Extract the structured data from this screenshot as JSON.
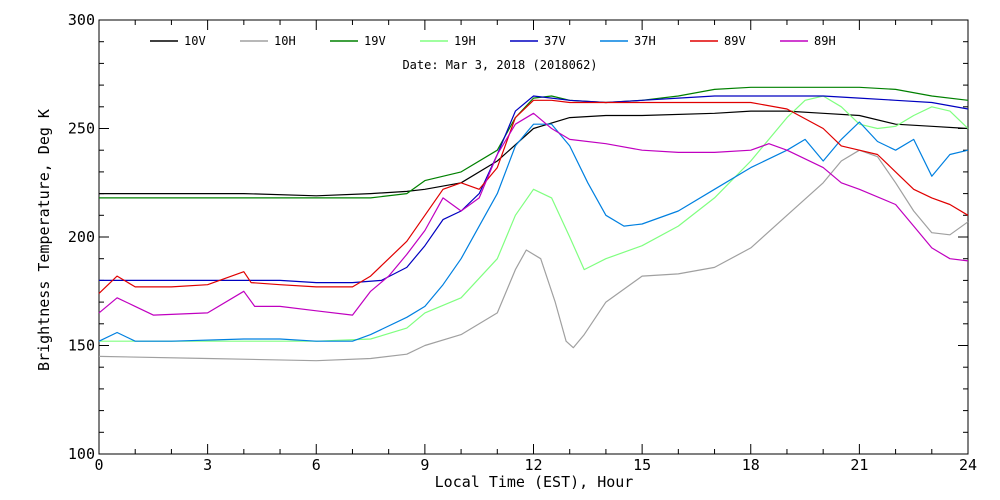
{
  "chart_data": {
    "type": "line",
    "title": "Date: Mar  3, 2018 (2018062)",
    "xlabel": "Local Time (EST), Hour",
    "ylabel": "Brightness Temperature, Deg K",
    "xlim": [
      0,
      24
    ],
    "ylim": [
      100,
      300
    ],
    "xticks": [
      0,
      3,
      6,
      9,
      12,
      15,
      18,
      21,
      24
    ],
    "yticks": [
      100,
      150,
      200,
      250,
      300
    ],
    "xtick_labels": [
      "0",
      "3",
      "6",
      "9",
      "12",
      "15",
      "18",
      "21",
      "24"
    ],
    "ytick_labels": [
      "100",
      "150",
      "200",
      "250",
      "300"
    ],
    "grid": false,
    "legend_position": "top",
    "series": [
      {
        "name": "10V",
        "color": "#000000",
        "points": [
          [
            0,
            220
          ],
          [
            2,
            220
          ],
          [
            4,
            220
          ],
          [
            6,
            219
          ],
          [
            7.5,
            220
          ],
          [
            8.5,
            221
          ],
          [
            9,
            222
          ],
          [
            10,
            225
          ],
          [
            11,
            235
          ],
          [
            12,
            250
          ],
          [
            13,
            255
          ],
          [
            14,
            256
          ],
          [
            15,
            256
          ],
          [
            17,
            257
          ],
          [
            18,
            258
          ],
          [
            19,
            258
          ],
          [
            20,
            257
          ],
          [
            21,
            256
          ],
          [
            22,
            252
          ],
          [
            23,
            251
          ],
          [
            24,
            250
          ]
        ]
      },
      {
        "name": "10H",
        "color": "#a0a0a0",
        "points": [
          [
            0,
            145
          ],
          [
            3,
            144
          ],
          [
            6,
            143
          ],
          [
            7.5,
            144
          ],
          [
            8.5,
            146
          ],
          [
            9,
            150
          ],
          [
            10,
            155
          ],
          [
            11,
            165
          ],
          [
            11.5,
            185
          ],
          [
            11.8,
            194
          ],
          [
            12.2,
            190
          ],
          [
            12.6,
            170
          ],
          [
            12.9,
            152
          ],
          [
            13.1,
            149
          ],
          [
            13.4,
            155
          ],
          [
            14,
            170
          ],
          [
            15,
            182
          ],
          [
            16,
            183
          ],
          [
            17,
            186
          ],
          [
            18,
            195
          ],
          [
            19,
            210
          ],
          [
            20,
            225
          ],
          [
            20.5,
            235
          ],
          [
            21,
            240
          ],
          [
            21.5,
            237
          ],
          [
            22,
            225
          ],
          [
            22.5,
            212
          ],
          [
            23,
            202
          ],
          [
            23.5,
            201
          ],
          [
            24,
            207
          ]
        ]
      },
      {
        "name": "19V",
        "color": "#008000",
        "points": [
          [
            0,
            218
          ],
          [
            3,
            218
          ],
          [
            6,
            218
          ],
          [
            7.5,
            218
          ],
          [
            8.5,
            220
          ],
          [
            9,
            226
          ],
          [
            10,
            230
          ],
          [
            11,
            240
          ],
          [
            11.5,
            255
          ],
          [
            12,
            264
          ],
          [
            12.5,
            265
          ],
          [
            13,
            263
          ],
          [
            14,
            262
          ],
          [
            15,
            263
          ],
          [
            16,
            265
          ],
          [
            17,
            268
          ],
          [
            18,
            269
          ],
          [
            19,
            269
          ],
          [
            20,
            269
          ],
          [
            21,
            269
          ],
          [
            22,
            268
          ],
          [
            23,
            265
          ],
          [
            24,
            263
          ]
        ]
      },
      {
        "name": "19H",
        "color": "#80ff80",
        "points": [
          [
            0,
            152
          ],
          [
            3,
            152
          ],
          [
            6,
            152
          ],
          [
            7.5,
            153
          ],
          [
            8.5,
            158
          ],
          [
            9,
            165
          ],
          [
            10,
            172
          ],
          [
            11,
            190
          ],
          [
            11.5,
            210
          ],
          [
            12,
            222
          ],
          [
            12.5,
            218
          ],
          [
            13,
            200
          ],
          [
            13.4,
            185
          ],
          [
            14,
            190
          ],
          [
            15,
            196
          ],
          [
            16,
            205
          ],
          [
            17,
            218
          ],
          [
            18,
            235
          ],
          [
            19,
            255
          ],
          [
            19.5,
            263
          ],
          [
            20,
            265
          ],
          [
            20.5,
            260
          ],
          [
            21,
            252
          ],
          [
            21.5,
            250
          ],
          [
            22,
            251
          ],
          [
            22.5,
            256
          ],
          [
            23,
            260
          ],
          [
            23.5,
            258
          ],
          [
            24,
            250
          ]
        ]
      },
      {
        "name": "37V",
        "color": "#0000c0",
        "points": [
          [
            0,
            180
          ],
          [
            1,
            180
          ],
          [
            3,
            180
          ],
          [
            5,
            180
          ],
          [
            6,
            179
          ],
          [
            7,
            179
          ],
          [
            7.8,
            180
          ],
          [
            8.5,
            186
          ],
          [
            9,
            196
          ],
          [
            9.5,
            208
          ],
          [
            10,
            212
          ],
          [
            10.5,
            220
          ],
          [
            11,
            238
          ],
          [
            11.5,
            258
          ],
          [
            12,
            265
          ],
          [
            12.5,
            264
          ],
          [
            13,
            263
          ],
          [
            14,
            262
          ],
          [
            15,
            263
          ],
          [
            16,
            264
          ],
          [
            17,
            265
          ],
          [
            18,
            265
          ],
          [
            19,
            265
          ],
          [
            20,
            265
          ],
          [
            21,
            264
          ],
          [
            22,
            263
          ],
          [
            23,
            262
          ],
          [
            24,
            259
          ]
        ]
      },
      {
        "name": "37H",
        "color": "#0080e0",
        "points": [
          [
            0,
            152
          ],
          [
            0.5,
            156
          ],
          [
            1,
            152
          ],
          [
            2,
            152
          ],
          [
            4,
            153
          ],
          [
            5,
            153
          ],
          [
            6,
            152
          ],
          [
            7,
            152
          ],
          [
            7.5,
            155
          ],
          [
            8.5,
            163
          ],
          [
            9,
            168
          ],
          [
            9.5,
            178
          ],
          [
            10,
            190
          ],
          [
            10.5,
            205
          ],
          [
            11,
            220
          ],
          [
            11.5,
            242
          ],
          [
            12,
            252
          ],
          [
            12.5,
            252
          ],
          [
            13,
            242
          ],
          [
            13.5,
            225
          ],
          [
            14,
            210
          ],
          [
            14.5,
            205
          ],
          [
            15,
            206
          ],
          [
            16,
            212
          ],
          [
            17,
            222
          ],
          [
            18,
            232
          ],
          [
            19,
            240
          ],
          [
            19.5,
            245
          ],
          [
            20,
            235
          ],
          [
            20.5,
            245
          ],
          [
            21,
            253
          ],
          [
            21.5,
            244
          ],
          [
            22,
            240
          ],
          [
            22.5,
            245
          ],
          [
            23,
            228
          ],
          [
            23.5,
            238
          ],
          [
            24,
            240
          ]
        ]
      },
      {
        "name": "89V",
        "color": "#e00000",
        "points": [
          [
            0,
            174
          ],
          [
            0.5,
            182
          ],
          [
            1,
            177
          ],
          [
            2,
            177
          ],
          [
            3,
            178
          ],
          [
            4,
            184
          ],
          [
            4.2,
            179
          ],
          [
            5,
            178
          ],
          [
            6,
            177
          ],
          [
            7,
            177
          ],
          [
            7.5,
            182
          ],
          [
            8,
            190
          ],
          [
            8.5,
            198
          ],
          [
            9,
            210
          ],
          [
            9.5,
            222
          ],
          [
            10,
            225
          ],
          [
            10.5,
            222
          ],
          [
            11,
            232
          ],
          [
            11.5,
            255
          ],
          [
            12,
            263
          ],
          [
            12.5,
            263
          ],
          [
            13,
            262
          ],
          [
            14,
            262
          ],
          [
            15,
            262
          ],
          [
            16,
            262
          ],
          [
            17,
            262
          ],
          [
            18,
            262
          ],
          [
            19,
            259
          ],
          [
            20,
            250
          ],
          [
            20.5,
            242
          ],
          [
            21,
            240
          ],
          [
            21.5,
            238
          ],
          [
            22,
            230
          ],
          [
            22.5,
            222
          ],
          [
            23,
            218
          ],
          [
            23.5,
            215
          ],
          [
            24,
            210
          ]
        ]
      },
      {
        "name": "89H",
        "color": "#c000c0",
        "points": [
          [
            0,
            165
          ],
          [
            0.5,
            172
          ],
          [
            1,
            168
          ],
          [
            1.5,
            164
          ],
          [
            3,
            165
          ],
          [
            4,
            175
          ],
          [
            4.3,
            168
          ],
          [
            5,
            168
          ],
          [
            6,
            166
          ],
          [
            7,
            164
          ],
          [
            7.5,
            175
          ],
          [
            8,
            182
          ],
          [
            8.5,
            192
          ],
          [
            9,
            203
          ],
          [
            9.5,
            218
          ],
          [
            10,
            212
          ],
          [
            10.5,
            218
          ],
          [
            11,
            238
          ],
          [
            11.5,
            252
          ],
          [
            12,
            257
          ],
          [
            12.5,
            250
          ],
          [
            13,
            245
          ],
          [
            14,
            243
          ],
          [
            15,
            240
          ],
          [
            16,
            239
          ],
          [
            17,
            239
          ],
          [
            18,
            240
          ],
          [
            18.5,
            243
          ],
          [
            19,
            240
          ],
          [
            20,
            232
          ],
          [
            20.5,
            225
          ],
          [
            21,
            222
          ],
          [
            22,
            215
          ],
          [
            22.5,
            205
          ],
          [
            23,
            195
          ],
          [
            23.5,
            190
          ],
          [
            24,
            189
          ]
        ]
      }
    ]
  }
}
